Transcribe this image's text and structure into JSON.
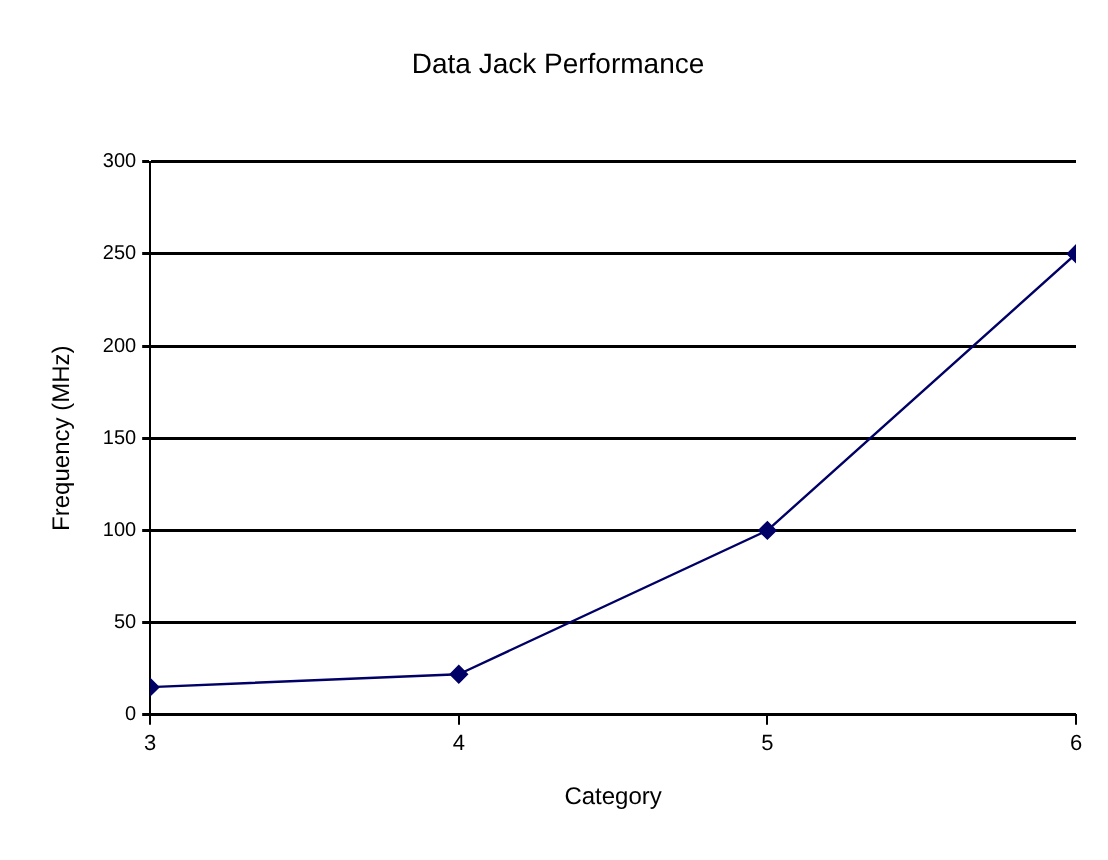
{
  "chart_data": {
    "type": "line",
    "title": "Data Jack Performance",
    "xlabel": "Category",
    "ylabel": "Frequency (MHz)",
    "x": [
      3,
      4,
      5,
      6
    ],
    "xlim": [
      3,
      6
    ],
    "xticks": [
      3,
      4,
      5,
      6
    ],
    "series": [
      {
        "color": "#000066",
        "values": [
          15,
          22,
          100,
          250
        ]
      }
    ],
    "ylim": [
      0,
      300
    ],
    "yticks": [
      0,
      50,
      100,
      150,
      200,
      250,
      300
    ],
    "grid": "y",
    "legend": false,
    "marker": "diamond",
    "line_style": "solid"
  }
}
